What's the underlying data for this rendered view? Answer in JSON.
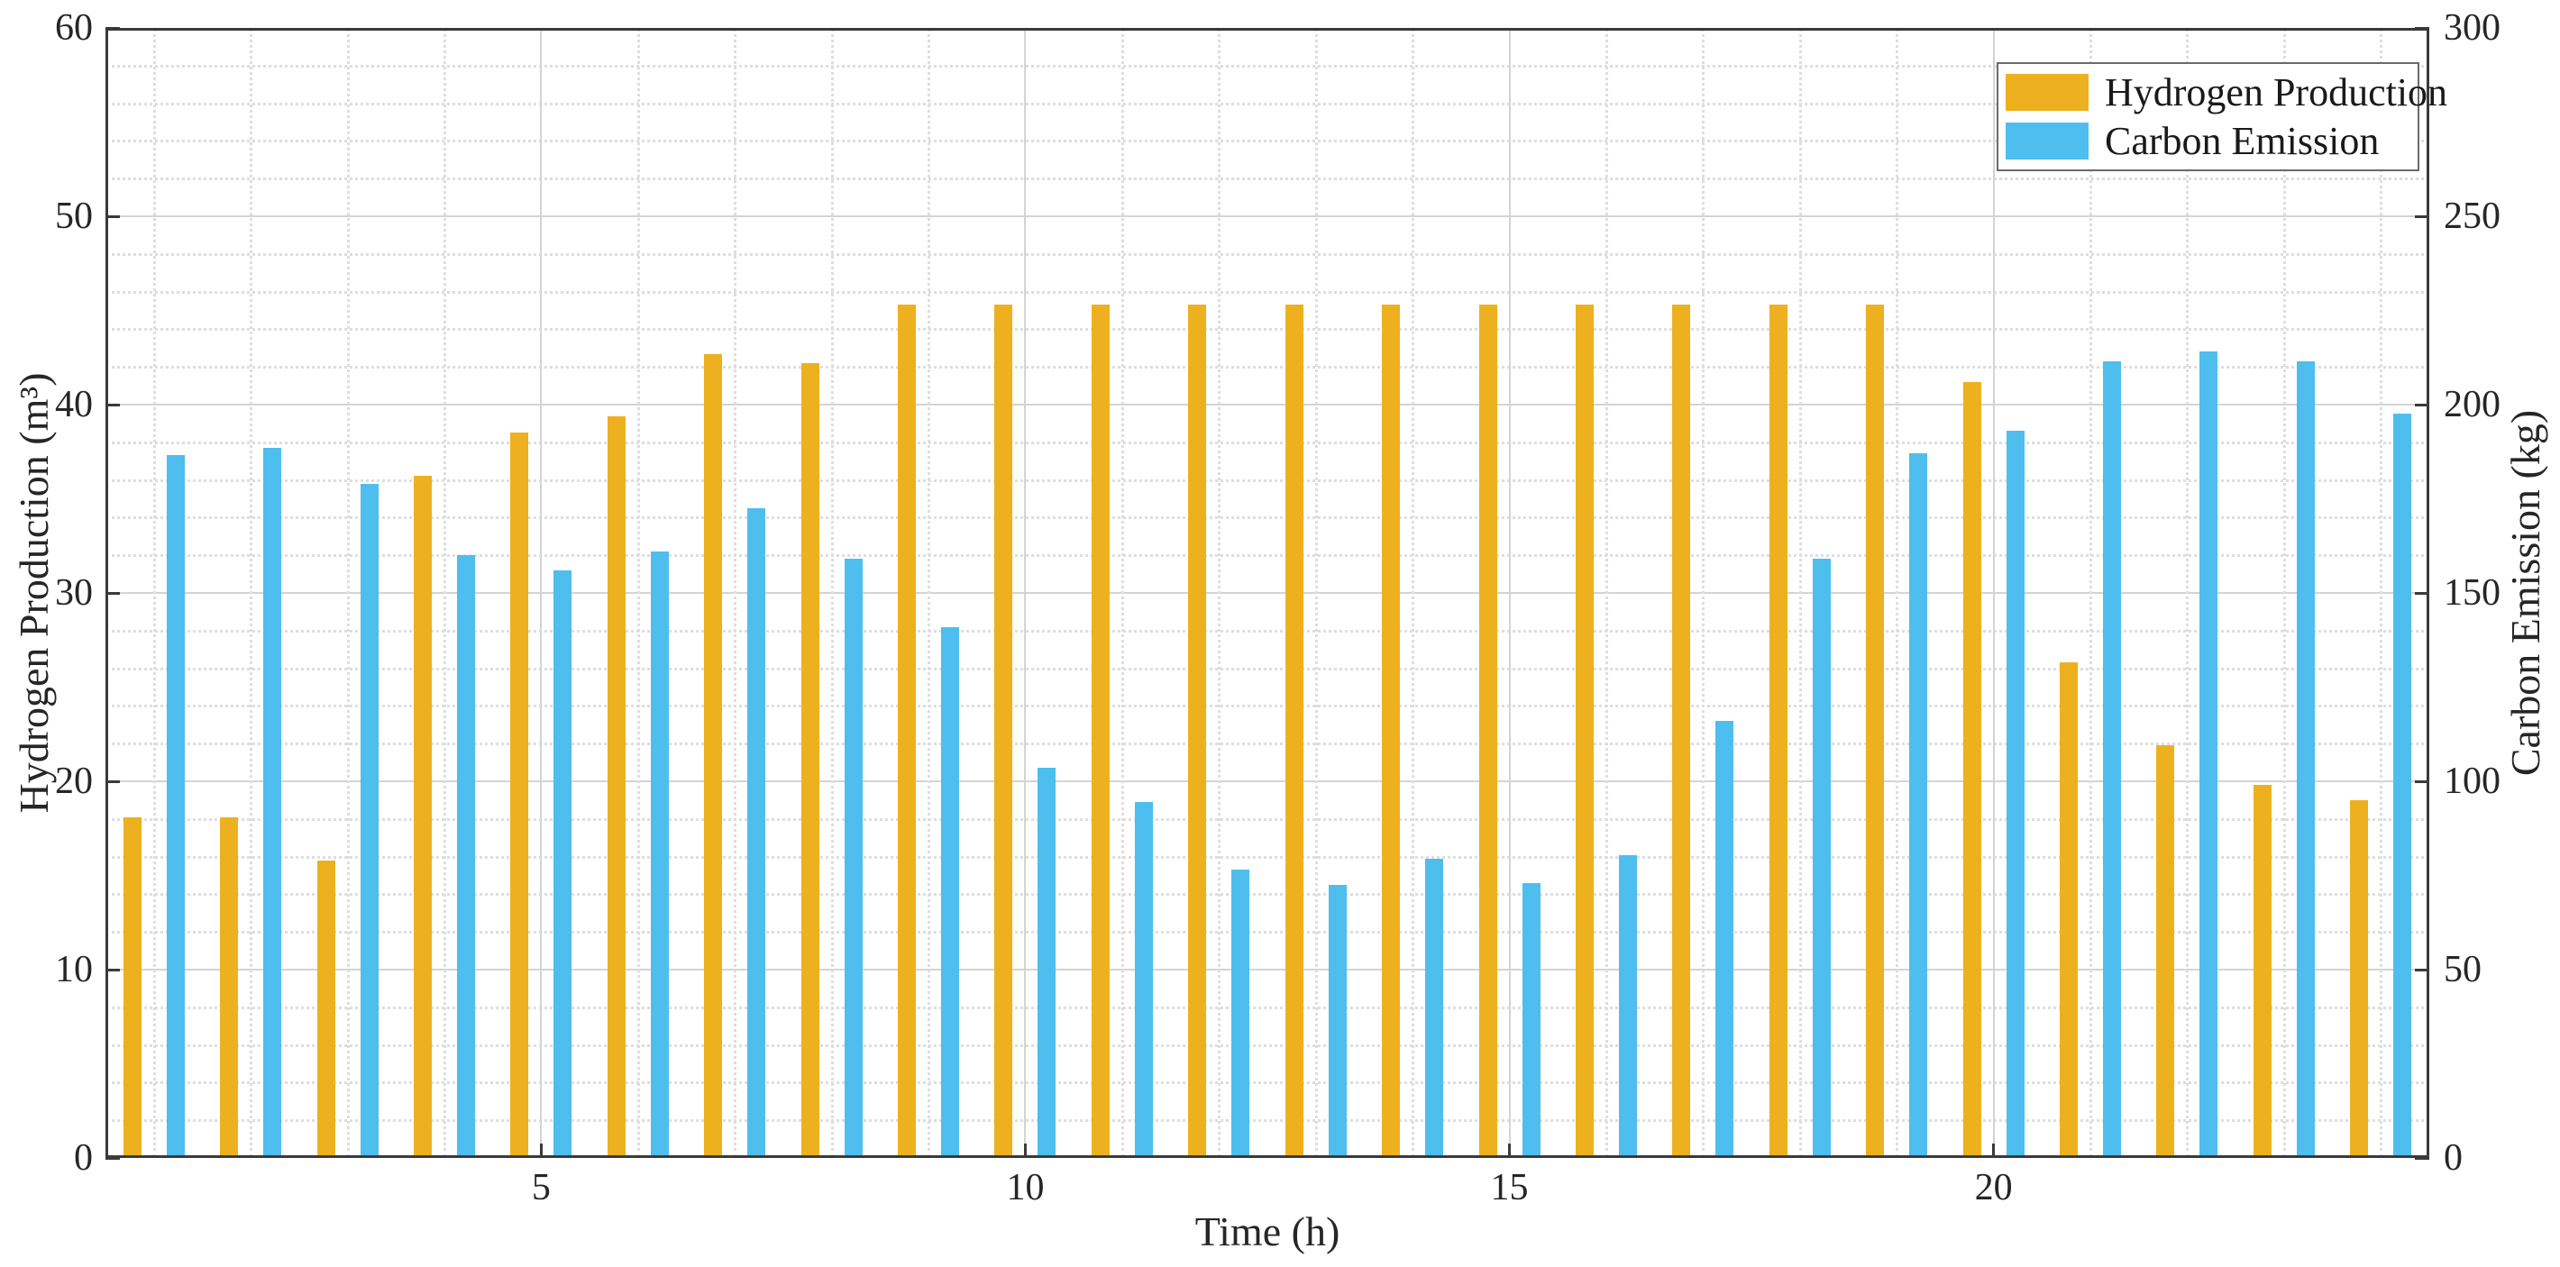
{
  "chart_data": {
    "type": "bar",
    "title": "",
    "xlabel": "Time (h)",
    "ylabel_left": "Hydrogen Production (m³)",
    "ylabel_right": "Carbon Emission (kg)",
    "x": [
      1,
      2,
      3,
      4,
      5,
      6,
      7,
      8,
      9,
      10,
      11,
      12,
      13,
      14,
      15,
      16,
      17,
      18,
      19,
      20,
      21,
      22,
      23,
      24
    ],
    "series": [
      {
        "name": "Hydrogen Production",
        "axis": "left",
        "unit": "m³",
        "color": "#EDB120",
        "values": [
          18.1,
          18.1,
          15.8,
          36.2,
          38.5,
          39.4,
          42.7,
          42.2,
          45.3,
          45.3,
          45.3,
          45.3,
          45.3,
          45.3,
          45.3,
          45.3,
          45.3,
          45.3,
          45.3,
          41.2,
          26.3,
          21.9,
          19.8,
          19.0
        ]
      },
      {
        "name": "Carbon Emission",
        "axis": "right",
        "unit": "kg",
        "color": "#4DBEEE",
        "values": [
          186.5,
          188.5,
          179.0,
          160.0,
          156.0,
          161.0,
          172.5,
          159.0,
          141.0,
          103.5,
          94.5,
          76.5,
          72.5,
          79.5,
          73.0,
          80.5,
          116.0,
          159.0,
          187.0,
          193.0,
          211.5,
          214.0,
          211.5,
          197.5
        ]
      }
    ],
    "axes": {
      "left": {
        "min": 0,
        "max": 60,
        "ticks": [
          0,
          10,
          20,
          30,
          40,
          50,
          60
        ]
      },
      "right": {
        "min": 0,
        "max": 300,
        "ticks": [
          0,
          50,
          100,
          150,
          200,
          250,
          300
        ]
      },
      "x": {
        "min": 0.5,
        "max": 24.5,
        "ticks": [
          5,
          10,
          15,
          20
        ],
        "minor_ticks_every": 1
      }
    },
    "grid": {
      "major": "solid",
      "minor": "dotted",
      "minor_y_step": 2
    },
    "legend": {
      "position": "top-right",
      "entries": [
        "Hydrogen Production",
        "Carbon Emission"
      ]
    }
  }
}
